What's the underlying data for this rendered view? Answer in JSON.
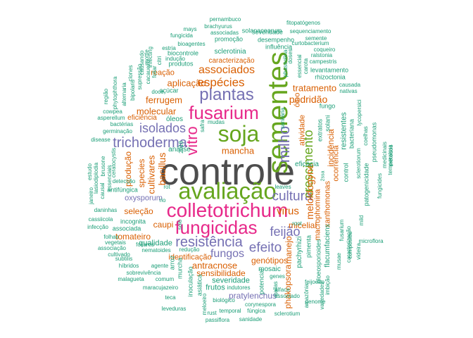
{
  "colors": {
    "tier1": "#4d4d4d",
    "tier2": "#e7298a",
    "tier3": "#66a61e",
    "tier4": "#7570b3",
    "tier5": "#d95f02",
    "tier6": "#1b9e77"
  },
  "words": [
    {
      "text": "controle",
      "tier": "tier1"
    },
    {
      "text": "avaliação",
      "tier": "tier3"
    },
    {
      "text": "colletotrichum",
      "tier": "tier2"
    },
    {
      "text": "fungicidas",
      "tier": "tier2"
    },
    {
      "text": "sementes",
      "tier": "tier3"
    },
    {
      "text": "soja",
      "tier": "tier3"
    },
    {
      "text": "fusarium",
      "tier": "tier2"
    },
    {
      "text": "plantas",
      "tier": "tier4"
    },
    {
      "text": "vitro",
      "tier": "tier2"
    },
    {
      "text": "espécies",
      "tier": "tier5"
    },
    {
      "text": "associados",
      "tier": "tier5"
    },
    {
      "text": "isolados",
      "tier": "tier4"
    },
    {
      "text": "trichoderma",
      "tier": "tier4"
    },
    {
      "text": "resistência",
      "tier": "tier4"
    },
    {
      "text": "efeito",
      "tier": "tier4"
    },
    {
      "text": "fungos",
      "tier": "tier4"
    },
    {
      "text": "feijão",
      "tier": "tier4"
    },
    {
      "text": "cultura",
      "tier": "tier4"
    },
    {
      "text": "milho",
      "tier": "tier4"
    },
    {
      "text": "crescimento",
      "tier": "tier3"
    },
    {
      "text": "virus",
      "tier": "tier2"
    },
    {
      "text": "meloidogyne",
      "tier": "tier5"
    },
    {
      "text": "podridão",
      "tier": "tier5"
    },
    {
      "text": "tratamento",
      "tier": "tier5"
    },
    {
      "text": "aplicação",
      "tier": "tier5"
    },
    {
      "text": "ferrugem",
      "tier": "tier5"
    },
    {
      "text": "molecular",
      "tier": "tier5"
    },
    {
      "text": "mancha",
      "tier": "tier5"
    },
    {
      "text": "bacillus",
      "tier": "tier5"
    },
    {
      "text": "cultivares",
      "tier": "tier5"
    },
    {
      "text": "species",
      "tier": "tier5"
    },
    {
      "text": "produção",
      "tier": "tier5"
    },
    {
      "text": "seleção",
      "tier": "tier5"
    },
    {
      "text": "caupi",
      "tier": "tier5"
    },
    {
      "text": "tomateiro",
      "tier": "tier5"
    },
    {
      "text": "qualidade",
      "tier": "tier5"
    },
    {
      "text": "identificação",
      "tier": "tier5"
    },
    {
      "text": "antracnose",
      "tier": "tier5"
    },
    {
      "text": "sensibilidade",
      "tier": "tier5"
    },
    {
      "text": "severidade",
      "tier": "tier5"
    },
    {
      "text": "genótipos",
      "tier": "tier5"
    },
    {
      "text": "manejo",
      "tier": "tier5"
    },
    {
      "text": "micelial",
      "tier": "tier5"
    },
    {
      "text": "phakopsora",
      "tier": "tier5"
    },
    {
      "text": "pratylenchus",
      "tier": "tier5"
    },
    {
      "text": "frutos",
      "tier": "tier5"
    },
    {
      "text": "eficácia",
      "tier": "tier6"
    },
    {
      "text": "incidência",
      "tier": "tier5"
    },
    {
      "text": "atividade",
      "tier": "tier5"
    },
    {
      "text": "óleo",
      "tier": "tier5"
    },
    {
      "text": "xanthomonas",
      "tier": "tier5"
    },
    {
      "text": "macrophomina",
      "tier": "tier5"
    },
    {
      "text": "ocorrência",
      "tier": "tier5"
    },
    {
      "text": "reação",
      "tier": "tier5"
    },
    {
      "text": "caracterização",
      "tier": "tier5"
    },
    {
      "text": "sclerotinia",
      "tier": "tier6"
    },
    {
      "text": "influência",
      "tier": "tier6"
    },
    {
      "text": "desempenho",
      "tier": "tier6"
    },
    {
      "text": "promoção",
      "tier": "tier6"
    },
    {
      "text": "severidade",
      "tier": "tier6"
    },
    {
      "text": "solanacearum",
      "tier": "tier6"
    },
    {
      "text": "fitopatógenos",
      "tier": "tier6"
    },
    {
      "text": "pernambuco",
      "tier": "tier6"
    },
    {
      "text": "brachyurus",
      "tier": "tier6"
    },
    {
      "text": "associadas",
      "tier": "tier6"
    },
    {
      "text": "mays",
      "tier": "tier6"
    },
    {
      "text": "fungicida",
      "tier": "tier6"
    },
    {
      "text": "bioagentes",
      "tier": "tier6"
    },
    {
      "text": "estria",
      "tier": "tier6"
    },
    {
      "text": "biocontrole",
      "tier": "tier6"
    },
    {
      "text": "indução",
      "tier": "tier6"
    },
    {
      "text": "produtos",
      "tier": "tier6"
    },
    {
      "text": "sequenciamento",
      "tier": "tier6"
    },
    {
      "text": "semente",
      "tier": "tier6"
    },
    {
      "text": "curtobacterium",
      "tier": "tier6"
    },
    {
      "text": "coqueiro",
      "tier": "tier6"
    },
    {
      "text": "ralstonia",
      "tier": "tier6"
    },
    {
      "text": "campestris",
      "tier": "tier6"
    },
    {
      "text": "levantamento",
      "tier": "tier6"
    },
    {
      "text": "rhizoctonia",
      "tier": "tier6"
    },
    {
      "text": "causada",
      "tier": "tier6"
    },
    {
      "text": "nativas",
      "tier": "tier6"
    },
    {
      "text": "açúcar",
      "tier": "tier6"
    },
    {
      "text": "doce",
      "tier": "tier6"
    },
    {
      "text": "citri",
      "tier": "tier6"
    },
    {
      "text": "óleos",
      "tier": "tier6"
    },
    {
      "text": "eficiência",
      "tier": "tier6"
    },
    {
      "text": "bactérias",
      "tier": "tier6"
    },
    {
      "text": "cowpea",
      "tier": "tier6"
    },
    {
      "text": "asperellum",
      "tier": "tier6"
    },
    {
      "text": "germinação",
      "tier": "tier6"
    },
    {
      "text": "mudas",
      "tier": "tier6"
    },
    {
      "text": "análise",
      "tier": "tier6"
    },
    {
      "text": "disease",
      "tier": "tier6"
    },
    {
      "text": "detecção",
      "tier": "tier6"
    },
    {
      "text": "antifúngica",
      "tier": "tier6"
    },
    {
      "text": "oxysporum",
      "tier": "tier6"
    },
    {
      "text": "daninhas",
      "tier": "tier6"
    },
    {
      "text": "cassiicola",
      "tier": "tier6"
    },
    {
      "text": "infecção",
      "tier": "tier6"
    },
    {
      "text": "incognita",
      "tier": "tier6"
    },
    {
      "text": "associada",
      "tier": "tier6"
    },
    {
      "text": "folhas",
      "tier": "tier6"
    },
    {
      "text": "associação",
      "tier": "tier6"
    },
    {
      "text": "cultivado",
      "tier": "tier6"
    },
    {
      "text": "subtilis",
      "tier": "tier6"
    },
    {
      "text": "híbridos",
      "tier": "tier6"
    },
    {
      "text": "sobrevivência",
      "tier": "tier6"
    },
    {
      "text": "malagueta",
      "tier": "tier6"
    },
    {
      "text": "comum",
      "tier": "tier6"
    },
    {
      "text": "agente",
      "tier": "tier6"
    },
    {
      "text": "maracujazeiro",
      "tier": "tier6"
    },
    {
      "text": "teca",
      "tier": "tier6"
    },
    {
      "text": "leveduras",
      "tier": "tier6"
    },
    {
      "text": "nematoides",
      "tier": "tier6"
    },
    {
      "text": "redução",
      "tier": "tier6"
    },
    {
      "text": "biológico",
      "tier": "tier6"
    },
    {
      "text": "temporal",
      "tier": "tier6"
    },
    {
      "text": "passiflora",
      "tier": "tier6"
    },
    {
      "text": "rust",
      "tier": "tier6"
    },
    {
      "text": "fúngica",
      "tier": "tier6"
    },
    {
      "text": "sanidade",
      "tier": "tier6"
    },
    {
      "text": "sclerotium",
      "tier": "tier6"
    },
    {
      "text": "corynespora",
      "tier": "tier6"
    },
    {
      "text": "indutores",
      "tier": "tier6"
    },
    {
      "text": "associado",
      "tier": "tier6"
    },
    {
      "text": "genome",
      "tier": "tier6"
    },
    {
      "text": "alface",
      "tier": "tier6"
    },
    {
      "text": "feijoeiro",
      "tier": "tier6"
    },
    {
      "text": "genes",
      "tier": "tier6"
    },
    {
      "text": "mosaic",
      "tier": "tier6"
    },
    {
      "text": "pimenta",
      "tier": "tier6"
    },
    {
      "text": "pachyrhizi",
      "tier": "tier6"
    },
    {
      "text": "microflora",
      "tier": "tier6"
    },
    {
      "text": "root",
      "tier": "tier6"
    },
    {
      "text": "leaves",
      "tier": "tier6"
    },
    {
      "text": "rot",
      "tier": "tier6"
    },
    {
      "text": "rio",
      "tier": "tier6"
    },
    {
      "text": "foliares",
      "tier": "tier6"
    },
    {
      "text": "solo",
      "tier": "tier6"
    },
    {
      "text": "2018",
      "tier": "tier6"
    },
    {
      "text": "safra",
      "tier": "tier6"
    },
    {
      "text": "sanitária",
      "tier": "tier6"
    },
    {
      "text": "fungo",
      "tier": "tier6"
    },
    {
      "text": "extratos",
      "tier": "tier6"
    },
    {
      "text": "solani",
      "tier": "tier6"
    },
    {
      "text": "resistentes",
      "tier": "tier6"
    },
    {
      "text": "bacteriana",
      "tier": "tier6"
    },
    {
      "text": "control",
      "tier": "tier6"
    },
    {
      "text": "coelhas",
      "tier": "tier6"
    },
    {
      "text": "lycopersici",
      "tier": "tier6"
    },
    {
      "text": "sclerotiorum",
      "tier": "tier6"
    },
    {
      "text": "patogenicidade",
      "tier": "tier6"
    },
    {
      "text": "pseudomonas",
      "tier": "tier6"
    },
    {
      "text": "fungicides",
      "tier": "tier6"
    },
    {
      "text": "métodos",
      "tier": "tier6"
    },
    {
      "text": "medicinais",
      "tier": "tier6"
    },
    {
      "text": "temperatura",
      "tier": "tier6"
    },
    {
      "text": "mild",
      "tier": "tier6"
    },
    {
      "text": "compostos",
      "tier": "tier6"
    },
    {
      "text": "caracterização",
      "tier": "tier6"
    },
    {
      "text": "videira",
      "tier": "tier6"
    },
    {
      "text": "fusarium",
      "tier": "tier6"
    },
    {
      "text": "flacumfaciens",
      "tier": "tier6"
    },
    {
      "text": "musae",
      "tier": "tier6"
    },
    {
      "text": "gloeosporioides",
      "tier": "tier6"
    },
    {
      "text": "imbição",
      "tier": "tier6"
    },
    {
      "text": "variedades",
      "tier": "tier6"
    },
    {
      "text": "amazônia",
      "tier": "tier6"
    },
    {
      "text": "meloeiro",
      "tier": "tier6"
    },
    {
      "text": "gallas",
      "tier": "tier6"
    },
    {
      "text": "asiática",
      "tier": "tier6"
    },
    {
      "text": "inoculação",
      "tier": "tier6"
    },
    {
      "text": "arroz",
      "tier": "tier6"
    },
    {
      "text": "murcha",
      "tier": "tier6"
    },
    {
      "text": "potencial",
      "tier": "tier6"
    },
    {
      "text": "phaseolina",
      "tier": "tier6"
    },
    {
      "text": "doses",
      "tier": "tier6"
    },
    {
      "text": "essencial",
      "tier": "tier6"
    },
    {
      "text": "carota",
      "tier": "tier6"
    },
    {
      "text": "região",
      "tier": "tier6"
    },
    {
      "text": "phytophthora",
      "tier": "tier6"
    },
    {
      "text": "alternaria",
      "tier": "tier6"
    },
    {
      "text": "bipolaris",
      "tier": "tier6"
    },
    {
      "text": "clones",
      "tier": "tier6"
    },
    {
      "text": "supressão",
      "tier": "tier6"
    },
    {
      "text": "causando",
      "tier": "tier6"
    },
    {
      "text": "cacaueiro",
      "tier": "tier6"
    },
    {
      "text": "infecting",
      "tier": "tier6"
    },
    {
      "text": "mottle",
      "tier": "tier6"
    },
    {
      "text": "foliar",
      "tier": "tier6"
    },
    {
      "text": "vegetais",
      "tier": "tier6"
    },
    {
      "text": "ceratocystis",
      "tier": "tier6"
    },
    {
      "text": "brusone",
      "tier": "tier6"
    },
    {
      "text": "essenciais",
      "tier": "tier6"
    },
    {
      "text": "lasiodiplodia",
      "tier": "tier6"
    },
    {
      "text": "causal",
      "tier": "tier6"
    },
    {
      "text": "estudo",
      "tier": "tier6"
    },
    {
      "text": "janeiro",
      "tier": "tier6"
    },
    {
      "text": "2ssa",
      "tier": "tier6"
    }
  ]
}
